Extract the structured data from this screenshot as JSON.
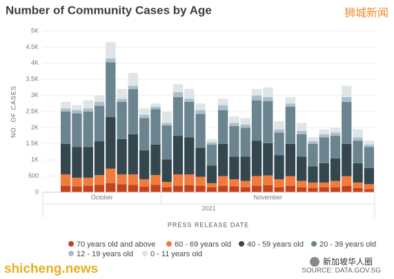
{
  "chart_data": {
    "type": "stacked_bar",
    "title": "Number of Community Cases by Age",
    "y_label": "NO. OF CASES",
    "x_label": "PRESS RELEASE DATE",
    "categories": [
      null,
      null,
      null,
      null,
      null,
      null,
      null,
      null,
      null,
      null,
      null,
      null,
      null,
      null,
      null,
      null,
      null,
      null,
      null,
      null,
      null,
      null,
      null,
      null,
      null,
      null,
      null,
      null
    ],
    "x_groups": [
      {
        "label": "October",
        "span": [
          0,
          8
        ]
      },
      {
        "label": "November",
        "span": [
          9,
          27
        ]
      }
    ],
    "x_year": "2021",
    "ylim": [
      0,
      5000
    ],
    "yticks": [
      0,
      500,
      {
        "value": 1000,
        "label": "1K"
      },
      {
        "value": 1500,
        "label": "1.5K"
      },
      {
        "value": 2000,
        "label": "2K"
      },
      {
        "value": 2500,
        "label": "2.5K"
      },
      {
        "value": 3000,
        "label": "3K"
      },
      {
        "value": 3500,
        "label": "3.5K"
      },
      {
        "value": 4000,
        "label": "4K"
      },
      {
        "value": 4500,
        "label": "4.5K"
      },
      {
        "value": 5000,
        "label": "5K"
      }
    ],
    "series": [
      {
        "name": "70 years old and above",
        "color": "#c4431f",
        "values": [
          200,
          180,
          200,
          230,
          280,
          250,
          230,
          170,
          230,
          150,
          200,
          220,
          200,
          150,
          200,
          180,
          150,
          200,
          220,
          150,
          200,
          150,
          130,
          150,
          150,
          200,
          130,
          100
        ]
      },
      {
        "name": "60 - 69 years old",
        "color": "#f07b3c",
        "values": [
          350,
          270,
          250,
          300,
          450,
          300,
          320,
          230,
          300,
          170,
          350,
          330,
          280,
          130,
          300,
          220,
          200,
          300,
          300,
          250,
          300,
          200,
          170,
          150,
          200,
          300,
          170,
          150
        ]
      },
      {
        "name": "40 - 59 years old",
        "color": "#34474f",
        "values": [
          950,
          950,
          950,
          1050,
          1600,
          1100,
          1250,
          900,
          950,
          700,
          1200,
          1150,
          900,
          550,
          1000,
          700,
          750,
          1100,
          1000,
          750,
          1000,
          750,
          500,
          600,
          700,
          1000,
          600,
          500
        ]
      },
      {
        "name": "20 - 39 years old",
        "color": "#6b8590",
        "values": [
          1000,
          1050,
          1100,
          1100,
          1700,
          1150,
          1400,
          1000,
          1100,
          1050,
          1200,
          1100,
          1050,
          650,
          1050,
          950,
          900,
          1250,
          1300,
          700,
          1150,
          700,
          700,
          800,
          700,
          1300,
          700,
          650
        ]
      },
      {
        "name": "12 - 19 years old",
        "color": "#a9c0cb",
        "values": [
          100,
          100,
          100,
          120,
          120,
          100,
          100,
          100,
          70,
          80,
          150,
          100,
          120,
          70,
          150,
          100,
          100,
          150,
          130,
          100,
          100,
          100,
          80,
          100,
          100,
          150,
          100,
          80
        ]
      },
      {
        "name": "0 - 11 years old",
        "color": "#dfe4e7",
        "values": [
          200,
          150,
          250,
          200,
          500,
          300,
          400,
          200,
          100,
          350,
          250,
          300,
          200,
          100,
          200,
          200,
          200,
          200,
          300,
          250,
          200,
          250,
          120,
          150,
          150,
          350,
          250,
          120
        ]
      }
    ],
    "watermarks": {
      "top": "狮城新闻",
      "bottom_left": "shicheng.news",
      "bottom_right": "新加坡华人圈",
      "source": "SOURCE: DATA.GOV.SG"
    }
  }
}
